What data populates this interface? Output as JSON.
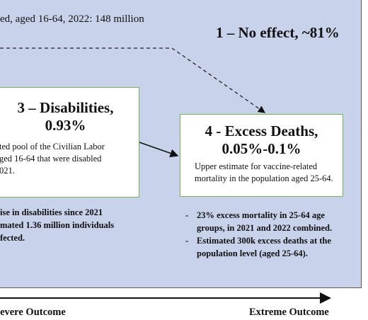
{
  "header": {
    "text": "ed, aged 16-64, 2022: 148 million"
  },
  "outcome_1": {
    "title": "1 – No effect, ~81%"
  },
  "outcome_3": {
    "title": "3 – Disabilities,",
    "value": "0.93%",
    "body": [
      "ted pool of the Civilian Labor",
      "ged 16-64 that were disabled",
      "021."
    ],
    "notes": [
      "ise in disabilities since 2021",
      "mated 1.36 million individuals",
      "fected."
    ]
  },
  "outcome_4": {
    "title": "4 - Excess Deaths,",
    "value": "0.05%-0.1%",
    "body": "Upper estimate for vaccine-related mortality in the population aged 25-64.",
    "bullets": [
      "23% excess mortality in 25-64 age groups, in 2021 and 2022 combined.",
      "Estimated 300k excess deaths at the population level (aged 25-64)."
    ]
  },
  "axis": {
    "left": "Severe Outcome",
    "right": "Extreme Outcome"
  }
}
